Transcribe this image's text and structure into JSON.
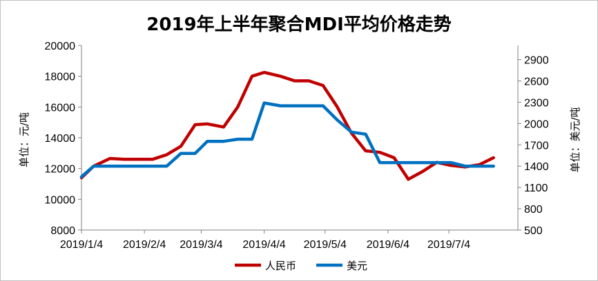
{
  "chart_data": {
    "type": "line",
    "title": "2019年上半年聚合MDI平均价格走势",
    "y_left_label": "单位：元/吨",
    "y_right_label": "单位：美元/吨",
    "y_left_range": [
      8000,
      20000
    ],
    "y_left_ticks": [
      8000,
      10000,
      12000,
      14000,
      16000,
      18000,
      20000
    ],
    "y_right_range": [
      500,
      3100
    ],
    "y_right_ticks": [
      500,
      800,
      1100,
      1400,
      1700,
      2000,
      2300,
      2600,
      2900
    ],
    "x_range": [
      "2019-01-04",
      "2019-08-07"
    ],
    "x_ticks": [
      {
        "date": "2019-01-04",
        "label": "2019/1/4"
      },
      {
        "date": "2019-02-04",
        "label": "2019/2/4"
      },
      {
        "date": "2019-03-04",
        "label": "2019/3/4"
      },
      {
        "date": "2019-04-04",
        "label": "2019/4/4"
      },
      {
        "date": "2019-05-04",
        "label": "2019/5/4"
      },
      {
        "date": "2019-06-04",
        "label": "2019/6/4"
      },
      {
        "date": "2019-07-04",
        "label": "2019/7/4"
      }
    ],
    "legend_position": "bottom",
    "series": [
      {
        "name": "人民币",
        "axis": "left",
        "color": "#c00000",
        "points": [
          {
            "x": "2019-01-04",
            "y": 11400
          },
          {
            "x": "2019-01-10",
            "y": 12150
          },
          {
            "x": "2019-01-18",
            "y": 12650
          },
          {
            "x": "2019-01-25",
            "y": 12600
          },
          {
            "x": "2019-02-01",
            "y": 12600
          },
          {
            "x": "2019-02-08",
            "y": 12600
          },
          {
            "x": "2019-02-15",
            "y": 12900
          },
          {
            "x": "2019-02-22",
            "y": 13450
          },
          {
            "x": "2019-03-01",
            "y": 14850
          },
          {
            "x": "2019-03-07",
            "y": 14900
          },
          {
            "x": "2019-03-15",
            "y": 14700
          },
          {
            "x": "2019-03-22",
            "y": 16000
          },
          {
            "x": "2019-03-29",
            "y": 18000
          },
          {
            "x": "2019-04-04",
            "y": 18250
          },
          {
            "x": "2019-04-12",
            "y": 18000
          },
          {
            "x": "2019-04-19",
            "y": 17700
          },
          {
            "x": "2019-04-26",
            "y": 17700
          },
          {
            "x": "2019-05-03",
            "y": 17400
          },
          {
            "x": "2019-05-10",
            "y": 16000
          },
          {
            "x": "2019-05-17",
            "y": 14300
          },
          {
            "x": "2019-05-24",
            "y": 13150
          },
          {
            "x": "2019-05-31",
            "y": 13050
          },
          {
            "x": "2019-06-07",
            "y": 12700
          },
          {
            "x": "2019-06-14",
            "y": 11300
          },
          {
            "x": "2019-06-21",
            "y": 11800
          },
          {
            "x": "2019-06-28",
            "y": 12400
          },
          {
            "x": "2019-07-05",
            "y": 12200
          },
          {
            "x": "2019-07-12",
            "y": 12100
          },
          {
            "x": "2019-07-19",
            "y": 12250
          },
          {
            "x": "2019-07-26",
            "y": 12700
          }
        ]
      },
      {
        "name": "美元",
        "axis": "right",
        "color": "#0070c0",
        "points": [
          {
            "x": "2019-01-04",
            "y": 1250
          },
          {
            "x": "2019-01-10",
            "y": 1400
          },
          {
            "x": "2019-01-18",
            "y": 1400
          },
          {
            "x": "2019-01-25",
            "y": 1400
          },
          {
            "x": "2019-02-01",
            "y": 1400
          },
          {
            "x": "2019-02-08",
            "y": 1400
          },
          {
            "x": "2019-02-15",
            "y": 1400
          },
          {
            "x": "2019-02-22",
            "y": 1580
          },
          {
            "x": "2019-03-01",
            "y": 1580
          },
          {
            "x": "2019-03-07",
            "y": 1750
          },
          {
            "x": "2019-03-15",
            "y": 1750
          },
          {
            "x": "2019-03-22",
            "y": 1780
          },
          {
            "x": "2019-03-29",
            "y": 1780
          },
          {
            "x": "2019-04-04",
            "y": 2290
          },
          {
            "x": "2019-04-12",
            "y": 2250
          },
          {
            "x": "2019-04-19",
            "y": 2250
          },
          {
            "x": "2019-04-26",
            "y": 2250
          },
          {
            "x": "2019-05-03",
            "y": 2250
          },
          {
            "x": "2019-05-10",
            "y": 2050
          },
          {
            "x": "2019-05-17",
            "y": 1880
          },
          {
            "x": "2019-05-24",
            "y": 1850
          },
          {
            "x": "2019-05-31",
            "y": 1450
          },
          {
            "x": "2019-06-07",
            "y": 1450
          },
          {
            "x": "2019-06-14",
            "y": 1450
          },
          {
            "x": "2019-06-21",
            "y": 1450
          },
          {
            "x": "2019-06-28",
            "y": 1450
          },
          {
            "x": "2019-07-05",
            "y": 1450
          },
          {
            "x": "2019-07-12",
            "y": 1400
          },
          {
            "x": "2019-07-19",
            "y": 1400
          },
          {
            "x": "2019-07-26",
            "y": 1400
          }
        ]
      }
    ]
  }
}
